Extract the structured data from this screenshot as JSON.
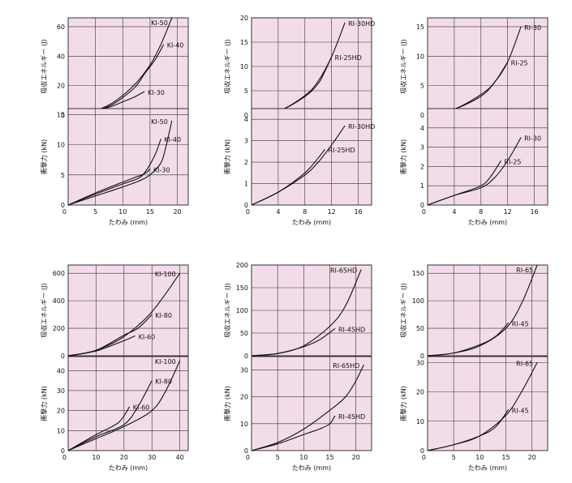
{
  "chart_data": [
    {
      "type": "line",
      "xlabel": "たわみ (mm)",
      "xlim": [
        0,
        22
      ],
      "xticks": [
        5,
        10,
        15,
        20
      ],
      "panels": [
        {
          "ylabel": "吸収エネルギー (J)",
          "ylim": [
            0,
            66
          ],
          "yticks": [
            0,
            20,
            40,
            60
          ],
          "series": [
            {
              "name": "KI-50",
              "label": "KI-50",
              "x": [
                0,
                4,
                8,
                12,
                15,
                17,
                19
              ],
              "y": [
                0,
                2,
                8,
                20,
                34,
                48,
                66
              ]
            },
            {
              "name": "KI-40",
              "label": "KI-40",
              "x": [
                0,
                4,
                8,
                12,
                14,
                16,
                17.5
              ],
              "y": [
                0,
                2,
                7,
                18,
                28,
                38,
                48
              ]
            },
            {
              "name": "KI-30",
              "label": "KI-30",
              "x": [
                0,
                4,
                8,
                10,
                12,
                14
              ],
              "y": [
                0,
                1.5,
                6,
                9,
                12,
                16
              ]
            }
          ]
        },
        {
          "ylabel": "衝撃力 (kN)",
          "ylim": [
            0,
            16
          ],
          "yticks": [
            0,
            5,
            10,
            15
          ],
          "series": [
            {
              "name": "KI-50",
              "label": "KI-50",
              "x": [
                0,
                5,
                10,
                13,
                15,
                17,
                18,
                19
              ],
              "y": [
                0,
                1.5,
                3,
                4,
                5,
                7,
                10,
                14
              ]
            },
            {
              "name": "KI-40",
              "label": "KI-40",
              "x": [
                0,
                5,
                10,
                13,
                14.5,
                16,
                17
              ],
              "y": [
                0,
                1.8,
                3.5,
                4.5,
                6,
                8.5,
                11
              ]
            },
            {
              "name": "KI-30",
              "label": "KI-30",
              "x": [
                0,
                5,
                10,
                12,
                13.5,
                14.5,
                15
              ],
              "y": [
                0,
                2,
                3.8,
                4.5,
                5,
                5.5,
                6
              ]
            }
          ]
        }
      ]
    },
    {
      "type": "line",
      "xlabel": "たわみ (mm)",
      "xlim": [
        0,
        18
      ],
      "xticks": [
        4,
        8,
        12,
        16
      ],
      "panels": [
        {
          "ylabel": "吸収エネルギー (J)",
          "ylim": [
            0,
            20
          ],
          "yticks": [
            0,
            5,
            10,
            15,
            20
          ],
          "series": [
            {
              "name": "RI-30HD",
              "label": "RI-30HD",
              "x": [
                0,
                4,
                8,
                10,
                12,
                14
              ],
              "y": [
                0,
                0.8,
                4,
                7,
                12,
                19
              ]
            },
            {
              "name": "RI-25HD",
              "label": "RI-25HD",
              "x": [
                0,
                4,
                8,
                10,
                11,
                12
              ],
              "y": [
                0,
                0.8,
                3.8,
                6.5,
                9,
                12
              ]
            }
          ]
        },
        {
          "ylabel": "衝撃力 (kN)",
          "ylim": [
            0,
            4.5
          ],
          "yticks": [
            0,
            1,
            2,
            3,
            4
          ],
          "series": [
            {
              "name": "RI-30HD",
              "label": "RI-30HD",
              "x": [
                0,
                4,
                8,
                10,
                12,
                14
              ],
              "y": [
                0,
                0.6,
                1.4,
                2,
                2.8,
                3.7
              ]
            },
            {
              "name": "RI-25HD",
              "label": "RI-25HD",
              "x": [
                0,
                4,
                8,
                10,
                11
              ],
              "y": [
                0,
                0.6,
                1.5,
                2.2,
                2.6
              ]
            }
          ]
        }
      ]
    },
    {
      "type": "line",
      "xlabel": "たわみ (mm)",
      "xlim": [
        0,
        18
      ],
      "xticks": [
        4,
        8,
        12,
        16
      ],
      "panels": [
        {
          "ylabel": "吸収エネルギー (J)",
          "ylim": [
            0,
            16.5
          ],
          "yticks": [
            0,
            5,
            10,
            15
          ],
          "series": [
            {
              "name": "RI-30",
              "label": "RI-30",
              "x": [
                0,
                4,
                8,
                10,
                12,
                14
              ],
              "y": [
                0,
                1,
                3.2,
                5.5,
                9,
                15
              ]
            },
            {
              "name": "RI-25",
              "label": "RI-25",
              "x": [
                0,
                4,
                8,
                10,
                12
              ],
              "y": [
                0,
                1,
                3.5,
                5.5,
                9
              ]
            }
          ]
        },
        {
          "ylabel": "衝撃力 (kN)",
          "ylim": [
            0,
            5
          ],
          "yticks": [
            0,
            1,
            2,
            3,
            4
          ],
          "series": [
            {
              "name": "RI-30",
              "label": "RI-30",
              "x": [
                0,
                4,
                8,
                10,
                12,
                14
              ],
              "y": [
                0,
                0.5,
                0.9,
                1.4,
                2.3,
                3.5
              ]
            },
            {
              "name": "RI-25",
              "label": "RI-25",
              "x": [
                0,
                4,
                8,
                9.5,
                11
              ],
              "y": [
                0,
                0.5,
                1,
                1.5,
                2.3
              ]
            }
          ]
        }
      ]
    },
    {
      "type": "line",
      "xlabel": "たわみ (mm)",
      "xlim": [
        0,
        43
      ],
      "xticks": [
        10,
        20,
        30,
        40
      ],
      "panels": [
        {
          "ylabel": "吸収エネルギー (J)",
          "ylim": [
            0,
            660
          ],
          "yticks": [
            0,
            200,
            400,
            600
          ],
          "series": [
            {
              "name": "KI-100",
              "label": "KI-100",
              "x": [
                0,
                10,
                20,
                30,
                40
              ],
              "y": [
                0,
                40,
                140,
                320,
                600
              ]
            },
            {
              "name": "KI-80",
              "label": "KI-80",
              "x": [
                0,
                10,
                20,
                25,
                30
              ],
              "y": [
                0,
                40,
                150,
                200,
                300
              ]
            },
            {
              "name": "KI-60",
              "label": "KI-60",
              "x": [
                0,
                10,
                20,
                24
              ],
              "y": [
                0,
                35,
                110,
                145
              ]
            }
          ]
        },
        {
          "ylabel": "衝撃力 (kN)",
          "ylim": [
            0,
            47
          ],
          "yticks": [
            0,
            10,
            20,
            30,
            40
          ],
          "series": [
            {
              "name": "KI-100",
              "label": "KI-100",
              "x": [
                0,
                10,
                20,
                30,
                35,
                40
              ],
              "y": [
                0,
                6,
                12,
                20,
                30,
                45
              ]
            },
            {
              "name": "KI-80",
              "label": "KI-80",
              "x": [
                0,
                10,
                20,
                25,
                30
              ],
              "y": [
                0,
                7,
                13,
                22,
                35
              ]
            },
            {
              "name": "KI-60",
              "label": "KI-60",
              "x": [
                0,
                10,
                18,
                22
              ],
              "y": [
                0,
                8,
                14,
                22
              ]
            }
          ]
        }
      ]
    },
    {
      "type": "line",
      "xlabel": "たわみ (mm)",
      "xlim": [
        0,
        23
      ],
      "xticks": [
        5,
        10,
        15,
        20
      ],
      "panels": [
        {
          "ylabel": "吸収エネルギー (J)",
          "ylim": [
            0,
            200
          ],
          "yticks": [
            0,
            50,
            100,
            150,
            200
          ],
          "series": [
            {
              "name": "RI-65HD",
              "label": "RI-65HD",
              "x": [
                0,
                5,
                10,
                15,
                18,
                21
              ],
              "y": [
                0,
                5,
                22,
                65,
                110,
                190
              ]
            },
            {
              "name": "RI-45HD",
              "label": "RI-45HD",
              "x": [
                0,
                5,
                10,
                13,
                16
              ],
              "y": [
                0,
                5,
                20,
                35,
                60
              ]
            }
          ]
        },
        {
          "ylabel": "衝撃力 (kN)",
          "ylim": [
            0,
            35
          ],
          "yticks": [
            0,
            10,
            20,
            30
          ],
          "series": [
            {
              "name": "RI-65HD",
              "label": "RI-65HD",
              "x": [
                0,
                5,
                10,
                15,
                18,
                20,
                21.5
              ],
              "y": [
                0,
                3,
                8,
                15,
                20,
                26,
                32
              ]
            },
            {
              "name": "RI-45HD",
              "label": "RI-45HD",
              "x": [
                0,
                5,
                10,
                13,
                15,
                16
              ],
              "y": [
                0,
                2.5,
                6,
                8,
                10,
                13
              ]
            }
          ]
        }
      ]
    },
    {
      "type": "line",
      "xlabel": "たわみ (mm)",
      "xlim": [
        0,
        23
      ],
      "xticks": [
        5,
        10,
        15,
        20
      ],
      "panels": [
        {
          "ylabel": "吸収エネルギー (J)",
          "ylim": [
            0,
            165
          ],
          "yticks": [
            0,
            50,
            100,
            150
          ],
          "series": [
            {
              "name": "RI-65",
              "label": "RI-65",
              "x": [
                0,
                5,
                10,
                15,
                18,
                21
              ],
              "y": [
                0,
                5,
                18,
                50,
                95,
                165
              ]
            },
            {
              "name": "RI-45",
              "label": "RI-45",
              "x": [
                0,
                5,
                10,
                13,
                15.5
              ],
              "y": [
                0,
                5,
                20,
                35,
                60
              ]
            }
          ]
        },
        {
          "ylabel": "衝撃力 (kN)",
          "ylim": [
            0,
            32
          ],
          "yticks": [
            0,
            10,
            20,
            30
          ],
          "series": [
            {
              "name": "RI-65",
              "label": "RI-65",
              "x": [
                0,
                5,
                10,
                15,
                18,
                21
              ],
              "y": [
                0,
                2,
                5,
                12,
                20,
                30
              ]
            },
            {
              "name": "RI-45",
              "label": "RI-45",
              "x": [
                0,
                5,
                10,
                13,
                15.5
              ],
              "y": [
                0,
                2,
                5,
                8,
                14
              ]
            }
          ]
        }
      ]
    }
  ]
}
